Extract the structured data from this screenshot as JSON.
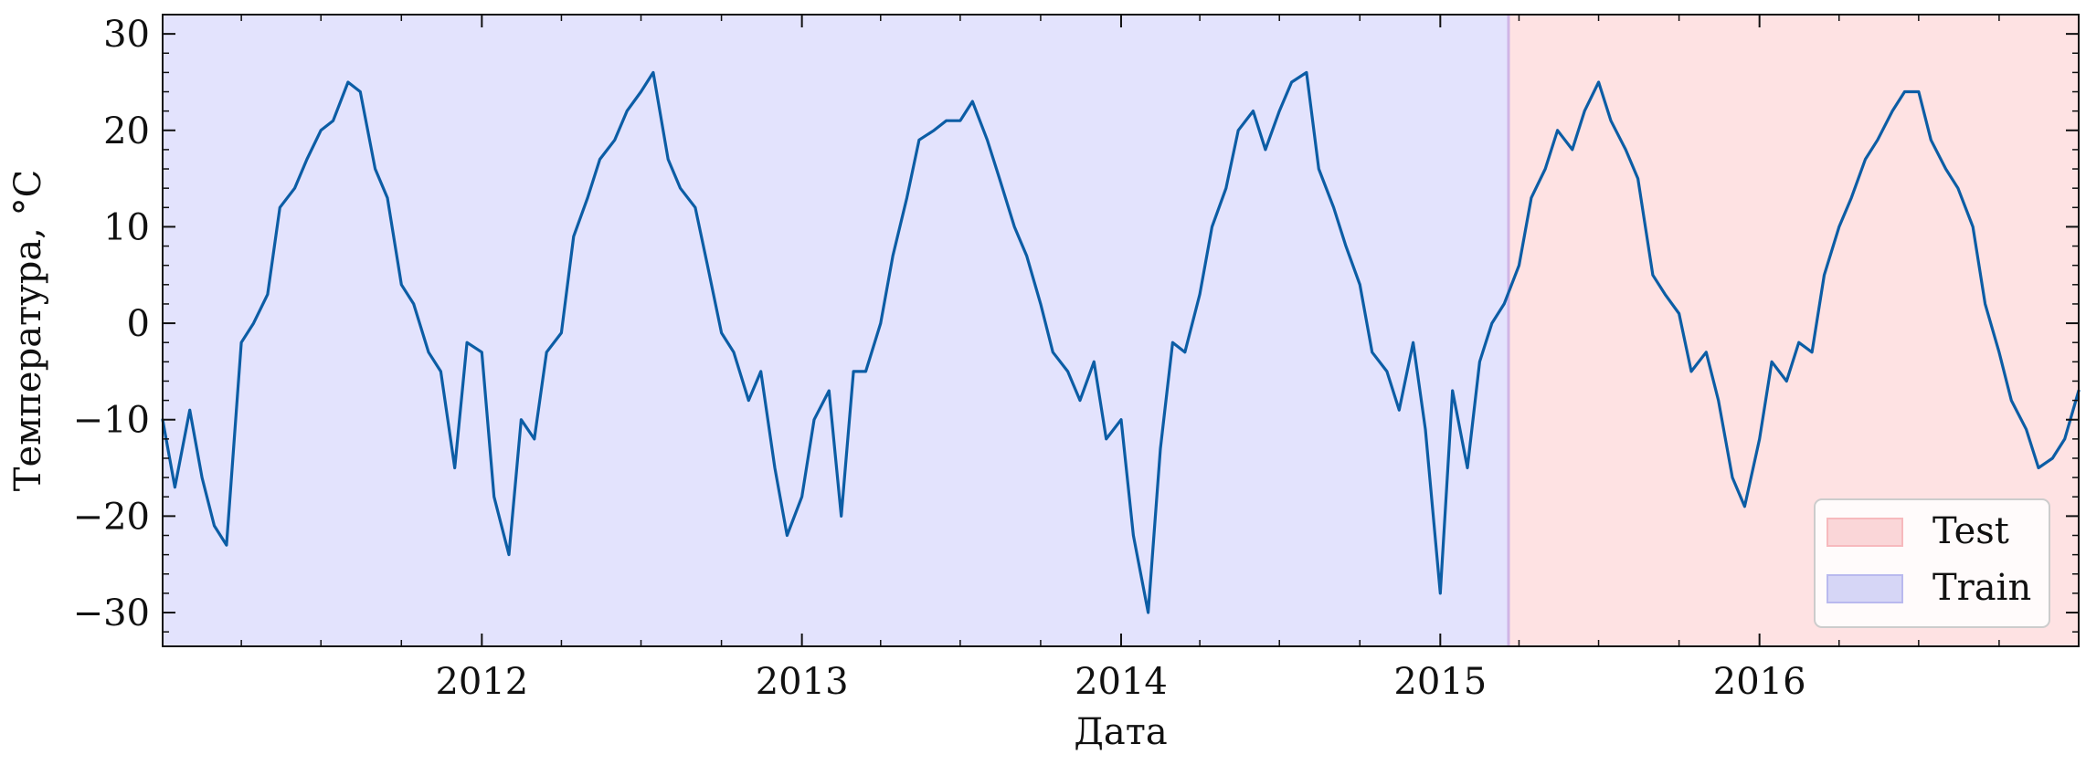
{
  "chart_data": {
    "type": "line",
    "title": "",
    "xlabel": "Дата",
    "ylabel": "Температура, °C",
    "xlim": [
      "2011-01-01",
      "2016-12-31"
    ],
    "ylim": [
      -33.5,
      32
    ],
    "yticks": [
      -30,
      -20,
      -10,
      0,
      10,
      20,
      30
    ],
    "ytick_labels": [
      "−30",
      "−20",
      "−10",
      "0",
      "10",
      "20",
      "30"
    ],
    "xticks": [
      "2012-01-01",
      "2013-01-01",
      "2014-01-01",
      "2015-01-01",
      "2016-01-01"
    ],
    "xtick_labels": [
      "2012",
      "2013",
      "2014",
      "2015",
      "2016"
    ],
    "grid": false,
    "legend_position": "lower-right",
    "colors": {
      "line": "#0C5DA5",
      "train_fill": "#E3E3FD",
      "test_fill": "#FEE2E3",
      "train_swatch": "#D6D6F6",
      "test_swatch": "#FAD6D8",
      "split_line": "#D0B5E6"
    },
    "regions": [
      {
        "name": "Train",
        "from": "2011-01-01",
        "to": "2015-03-20"
      },
      {
        "name": "Test",
        "from": "2015-03-20",
        "to": "2016-12-31"
      }
    ],
    "legend": [
      "Test",
      "Train"
    ],
    "series": [
      {
        "x": [
          "2011-01-01",
          "2011-01-15",
          "2011-02-01",
          "2011-02-15",
          "2011-03-01",
          "2011-03-15",
          "2011-04-01",
          "2011-04-15",
          "2011-05-01",
          "2011-05-15",
          "2011-06-01",
          "2011-06-15",
          "2011-07-01",
          "2011-07-15",
          "2011-08-01",
          "2011-08-15",
          "2011-09-01",
          "2011-09-15",
          "2011-10-01",
          "2011-10-15",
          "2011-11-01",
          "2011-11-15",
          "2011-12-01",
          "2011-12-15",
          "2012-01-01",
          "2012-01-15",
          "2012-02-01",
          "2012-02-15",
          "2012-03-01",
          "2012-03-15",
          "2012-04-01",
          "2012-04-15",
          "2012-05-01",
          "2012-05-15",
          "2012-06-01",
          "2012-06-15",
          "2012-07-01",
          "2012-07-15",
          "2012-08-01",
          "2012-08-15",
          "2012-09-01",
          "2012-09-15",
          "2012-10-01",
          "2012-10-15",
          "2012-11-01",
          "2012-11-15",
          "2012-12-01",
          "2012-12-15",
          "2013-01-01",
          "2013-01-15",
          "2013-02-01",
          "2013-02-15",
          "2013-03-01",
          "2013-03-15",
          "2013-04-01",
          "2013-04-15",
          "2013-05-01",
          "2013-05-15",
          "2013-06-01",
          "2013-06-15",
          "2013-07-01",
          "2013-07-15",
          "2013-08-01",
          "2013-08-15",
          "2013-09-01",
          "2013-09-15",
          "2013-10-01",
          "2013-10-15",
          "2013-11-01",
          "2013-11-15",
          "2013-12-01",
          "2013-12-15",
          "2014-01-01",
          "2014-01-15",
          "2014-02-01",
          "2014-02-15",
          "2014-03-01",
          "2014-03-15",
          "2014-04-01",
          "2014-04-15",
          "2014-05-01",
          "2014-05-15",
          "2014-06-01",
          "2014-06-15",
          "2014-07-01",
          "2014-07-15",
          "2014-08-01",
          "2014-08-15",
          "2014-09-01",
          "2014-09-15",
          "2014-10-01",
          "2014-10-15",
          "2014-11-01",
          "2014-11-15",
          "2014-12-01",
          "2014-12-15",
          "2015-01-01",
          "2015-01-15",
          "2015-02-01",
          "2015-02-15",
          "2015-03-01",
          "2015-03-15",
          "2015-04-01",
          "2015-04-15",
          "2015-05-01",
          "2015-05-15",
          "2015-06-01",
          "2015-06-15",
          "2015-07-01",
          "2015-07-15",
          "2015-08-01",
          "2015-08-15",
          "2015-09-01",
          "2015-09-15",
          "2015-10-01",
          "2015-10-15",
          "2015-11-01",
          "2015-11-15",
          "2015-12-01",
          "2015-12-15",
          "2016-01-01",
          "2016-01-15",
          "2016-02-01",
          "2016-02-15",
          "2016-03-01",
          "2016-03-15",
          "2016-04-01",
          "2016-04-15",
          "2016-05-01",
          "2016-05-15",
          "2016-06-01",
          "2016-06-15",
          "2016-07-01",
          "2016-07-15",
          "2016-08-01",
          "2016-08-15",
          "2016-09-01",
          "2016-09-15",
          "2016-10-01",
          "2016-10-15",
          "2016-11-01",
          "2016-11-15",
          "2016-12-01",
          "2016-12-15",
          "2016-12-31"
        ],
        "y": [
          -10,
          -17,
          -9,
          -16,
          -21,
          -23,
          -2,
          0,
          3,
          12,
          14,
          17,
          20,
          21,
          25,
          24,
          16,
          13,
          4,
          2,
          -3,
          -5,
          -15,
          -2,
          -3,
          -18,
          -24,
          -10,
          -12,
          -3,
          -1,
          9,
          13,
          17,
          19,
          22,
          24,
          26,
          17,
          14,
          12,
          6,
          -1,
          -3,
          -8,
          -5,
          -15,
          -22,
          -18,
          -10,
          -7,
          -20,
          -5,
          -5,
          0,
          7,
          13,
          19,
          20,
          21,
          21,
          23,
          19,
          15,
          10,
          7,
          2,
          -3,
          -5,
          -8,
          -4,
          -12,
          -10,
          -22,
          -30,
          -13,
          -2,
          -3,
          3,
          10,
          14,
          20,
          22,
          18,
          22,
          25,
          26,
          16,
          12,
          8,
          4,
          -3,
          -5,
          -9,
          -2,
          -11,
          -28,
          -7,
          -15,
          -4,
          0,
          2,
          6,
          13,
          16,
          20,
          18,
          22,
          25,
          21,
          18,
          15,
          5,
          3,
          1,
          -5,
          -3,
          -8,
          -16,
          -19,
          -12,
          -4,
          -6,
          -2,
          -3,
          5,
          10,
          13,
          17,
          19,
          22,
          24,
          24,
          19,
          16,
          14,
          10,
          2,
          -3,
          -8,
          -11,
          -15,
          -14,
          -12,
          -7
        ]
      }
    ]
  }
}
